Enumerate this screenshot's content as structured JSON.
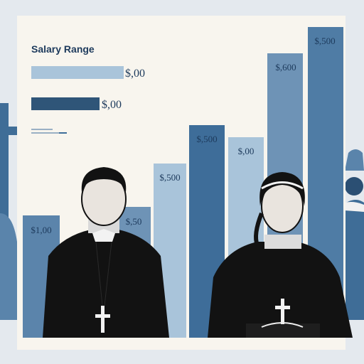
{
  "legend": {
    "title": "Salary Range",
    "items": [
      {
        "label": "$,00",
        "color": "#a9c4da"
      },
      {
        "label": "$,00",
        "color": "#2f5578"
      }
    ]
  },
  "bars": [
    {
      "label": "$1,00",
      "color": "#5b84ab"
    },
    {
      "label": "$,50",
      "color": "#6e93b6"
    },
    {
      "label": "$,500",
      "color": "#a9c4da"
    },
    {
      "label": "$,500",
      "color": "#3e6d99"
    },
    {
      "label": "$,00",
      "color": "#a9c4da"
    },
    {
      "label": "$,600",
      "color": "#6e93b6"
    },
    {
      "label": "$,500",
      "color": "#4f7ca5"
    }
  ],
  "colors": {
    "background": "#e4e9ee",
    "panel": "#f8f5ee",
    "ink": "#111111",
    "accent_blue": "#3e6d99"
  }
}
